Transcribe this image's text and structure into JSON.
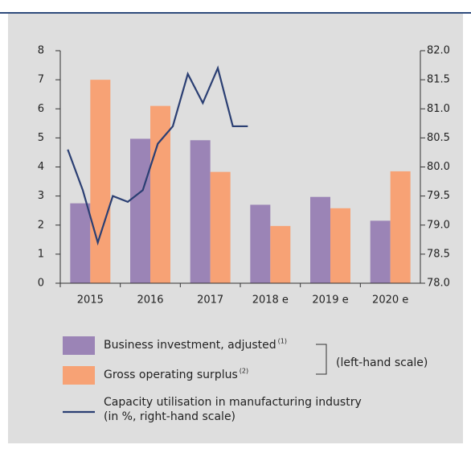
{
  "chart_data": {
    "type": "bar",
    "categories": [
      "2015",
      "2016",
      "2017",
      "2018 e",
      "2019 e",
      "2020 e"
    ],
    "series": [
      {
        "name": "Business investment, adjusted",
        "footnote": "(1)",
        "color": "#9b84b6",
        "values": [
          2.75,
          4.97,
          4.92,
          2.7,
          2.97,
          2.15
        ]
      },
      {
        "name": "Gross operating surplus",
        "footnote": "(2)",
        "color": "#f7a275",
        "values": [
          7.0,
          6.1,
          3.83,
          1.97,
          2.58,
          3.85
        ]
      }
    ],
    "line": {
      "name": [
        "Capacity utilisation in manufacturing industry",
        "(in %, right-hand scale)"
      ],
      "color": "#2b3f73",
      "axis": "y2",
      "values": [
        80.3,
        79.6,
        78.7,
        79.5,
        79.4,
        79.6,
        80.4,
        80.7,
        81.6,
        81.1,
        81.7,
        80.7,
        80.7
      ]
    },
    "bracket_label": "(left-hand scale)",
    "ylim": [
      0,
      8
    ],
    "yticks": [
      0,
      1,
      2,
      3,
      4,
      5,
      6,
      7,
      8
    ],
    "y2lim": [
      78,
      82
    ],
    "y2ticks": [
      {
        "value": 78,
        "label": "78.0"
      },
      78.5,
      {
        "value": 79,
        "label": "79.0"
      },
      79.5,
      {
        "value": 80,
        "label": "80.0"
      },
      80.5,
      {
        "value": 81,
        "label": "81.0"
      },
      81.5,
      {
        "value": 82,
        "label": "82.0"
      }
    ]
  }
}
